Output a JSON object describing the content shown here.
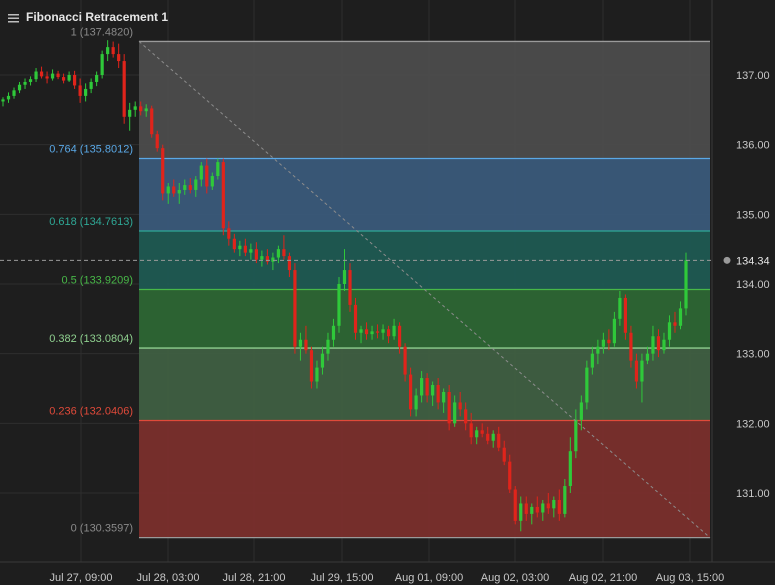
{
  "title": "Fibonacci Retracement 1",
  "colors": {
    "background": "#1e1e1e",
    "grid": "#2e2e2e",
    "axis_text": "#c8c8c8",
    "up": "#2fc93a",
    "down": "#e0241b",
    "fib_1": "#4c4c4c",
    "fib_0764": "#3a5a7a",
    "fib_0618": "#1f5a52",
    "fib_05": "#2d6634",
    "fib_0382": "#3f5f42",
    "fib_0236": "#7a2f2c",
    "label_1": "#8a8a8a",
    "label_0764": "#5aa8e6",
    "label_0618": "#2fa896",
    "label_05": "#48b848",
    "label_0382": "#8fd08f",
    "label_0236": "#e04a3a",
    "label_0": "#8a8a8a"
  },
  "chart_data": {
    "type": "candlestick",
    "ylim": [
      130.0,
      137.9
    ],
    "y_ticks": [
      "137.00",
      "136.00",
      "135.00",
      "134.00",
      "133.00",
      "132.00",
      "131.00"
    ],
    "x_ticks": [
      "Jul 27, 09:00",
      "Jul 28, 03:00",
      "Jul 28, 21:00",
      "Jul 29, 15:00",
      "Aug 01, 09:00",
      "Aug 02, 03:00",
      "Aug 02, 21:00",
      "Aug 03, 15:00"
    ],
    "current_price": "134.34",
    "fib_levels": [
      {
        "ratio": "1",
        "price": 137.482,
        "label": "1 (137.4820)",
        "fill": "fib_1",
        "text_color": "label_1"
      },
      {
        "ratio": "0.764",
        "price": 135.8012,
        "label": "0.764 (135.8012)",
        "fill": "fib_0764",
        "text_color": "label_0764"
      },
      {
        "ratio": "0.618",
        "price": 134.7613,
        "label": "0.618 (134.7613)",
        "fill": "fib_0618",
        "text_color": "label_0618"
      },
      {
        "ratio": "0.5",
        "price": 133.9209,
        "label": "0.5 (133.9209)",
        "fill": "fib_05",
        "text_color": "label_05"
      },
      {
        "ratio": "0.382",
        "price": 133.0804,
        "label": "0.382 (133.0804)",
        "fill": "fib_0382",
        "text_color": "label_0382"
      },
      {
        "ratio": "0.236",
        "price": 132.0406,
        "label": "0.236 (132.0406)",
        "fill": "fib_0236",
        "text_color": "label_0236"
      },
      {
        "ratio": "0",
        "price": 130.3597,
        "label": "0 (130.3597)",
        "fill": "fib_0",
        "text_color": "label_0"
      }
    ],
    "trend_line": {
      "from_price": 137.482,
      "to_price": 130.3597
    },
    "candles": [
      [
        136.62,
        136.68,
        136.55,
        136.65
      ],
      [
        136.65,
        136.75,
        136.6,
        136.7
      ],
      [
        136.7,
        136.82,
        136.66,
        136.78
      ],
      [
        136.78,
        136.9,
        136.74,
        136.86
      ],
      [
        136.86,
        136.95,
        136.8,
        136.9
      ],
      [
        136.9,
        136.98,
        136.85,
        136.94
      ],
      [
        136.94,
        137.1,
        136.9,
        137.05
      ],
      [
        137.05,
        137.12,
        136.95,
        136.98
      ],
      [
        136.98,
        137.05,
        136.88,
        136.95
      ],
      [
        136.95,
        137.08,
        136.92,
        137.02
      ],
      [
        137.02,
        137.06,
        136.94,
        136.97
      ],
      [
        136.97,
        137.02,
        136.88,
        136.92
      ],
      [
        136.92,
        137.05,
        136.9,
        137.0
      ],
      [
        137.0,
        137.06,
        136.8,
        136.85
      ],
      [
        136.85,
        136.95,
        136.6,
        136.7
      ],
      [
        136.7,
        136.88,
        136.62,
        136.8
      ],
      [
        136.8,
        136.95,
        136.74,
        136.9
      ],
      [
        136.9,
        137.05,
        136.84,
        137.0
      ],
      [
        137.0,
        137.35,
        136.95,
        137.3
      ],
      [
        137.3,
        137.5,
        137.2,
        137.4
      ],
      [
        137.4,
        137.48,
        137.25,
        137.3
      ],
      [
        137.3,
        137.45,
        137.1,
        137.2
      ],
      [
        137.2,
        137.3,
        136.3,
        136.4
      ],
      [
        136.4,
        136.6,
        136.2,
        136.5
      ],
      [
        136.5,
        136.62,
        136.4,
        136.55
      ],
      [
        136.55,
        136.62,
        136.42,
        136.48
      ],
      [
        136.48,
        136.58,
        136.4,
        136.52
      ],
      [
        136.52,
        136.56,
        136.1,
        136.15
      ],
      [
        136.15,
        136.2,
        135.9,
        135.95
      ],
      [
        135.95,
        136.0,
        135.2,
        135.3
      ],
      [
        135.3,
        135.45,
        135.15,
        135.4
      ],
      [
        135.4,
        135.5,
        135.25,
        135.3
      ],
      [
        135.3,
        135.45,
        135.15,
        135.35
      ],
      [
        135.35,
        135.5,
        135.28,
        135.42
      ],
      [
        135.42,
        135.52,
        135.3,
        135.35
      ],
      [
        135.35,
        135.55,
        135.25,
        135.5
      ],
      [
        135.5,
        135.75,
        135.4,
        135.7
      ],
      [
        135.7,
        135.8,
        135.3,
        135.4
      ],
      [
        135.4,
        135.6,
        135.35,
        135.55
      ],
      [
        135.55,
        135.8,
        135.5,
        135.75
      ],
      [
        135.75,
        135.8,
        134.7,
        134.8
      ],
      [
        134.8,
        134.9,
        134.55,
        134.65
      ],
      [
        134.65,
        134.72,
        134.45,
        134.5
      ],
      [
        134.5,
        134.62,
        134.4,
        134.55
      ],
      [
        134.55,
        134.65,
        134.4,
        134.45
      ],
      [
        134.45,
        134.58,
        134.35,
        134.5
      ],
      [
        134.5,
        134.6,
        134.3,
        134.35
      ],
      [
        134.35,
        134.48,
        134.25,
        134.4
      ],
      [
        134.4,
        134.5,
        134.28,
        134.32
      ],
      [
        134.32,
        134.45,
        134.2,
        134.38
      ],
      [
        134.38,
        134.55,
        134.3,
        134.5
      ],
      [
        134.5,
        134.7,
        134.35,
        134.4
      ],
      [
        134.4,
        134.45,
        134.1,
        134.2
      ],
      [
        134.2,
        134.3,
        133.0,
        133.1
      ],
      [
        133.1,
        133.3,
        132.9,
        133.2
      ],
      [
        133.2,
        133.4,
        133.0,
        133.05
      ],
      [
        133.05,
        133.1,
        132.5,
        132.6
      ],
      [
        132.6,
        132.9,
        132.5,
        132.8
      ],
      [
        132.8,
        133.1,
        132.7,
        133.0
      ],
      [
        133.0,
        133.3,
        132.9,
        133.2
      ],
      [
        133.2,
        133.5,
        133.1,
        133.4
      ],
      [
        133.4,
        134.1,
        133.3,
        134.0
      ],
      [
        134.0,
        134.5,
        133.9,
        134.2
      ],
      [
        134.2,
        134.3,
        133.6,
        133.7
      ],
      [
        133.7,
        133.8,
        133.2,
        133.3
      ],
      [
        133.3,
        133.4,
        133.15,
        133.35
      ],
      [
        133.35,
        133.45,
        133.2,
        133.28
      ],
      [
        133.28,
        133.4,
        133.2,
        133.32
      ],
      [
        133.32,
        133.42,
        133.22,
        133.3
      ],
      [
        133.3,
        133.42,
        133.2,
        133.35
      ],
      [
        133.35,
        133.4,
        133.15,
        133.25
      ],
      [
        133.25,
        133.5,
        133.2,
        133.4
      ],
      [
        133.4,
        133.45,
        133.0,
        133.1
      ],
      [
        133.1,
        133.15,
        132.6,
        132.7
      ],
      [
        132.7,
        132.8,
        132.1,
        132.2
      ],
      [
        132.2,
        132.5,
        132.1,
        132.4
      ],
      [
        132.4,
        132.75,
        132.3,
        132.65
      ],
      [
        132.65,
        132.72,
        132.3,
        132.4
      ],
      [
        132.4,
        132.6,
        132.25,
        132.55
      ],
      [
        132.55,
        132.65,
        132.2,
        132.3
      ],
      [
        132.3,
        132.5,
        132.15,
        132.45
      ],
      [
        132.45,
        132.55,
        131.9,
        132.0
      ],
      [
        132.0,
        132.4,
        131.95,
        132.3
      ],
      [
        132.3,
        132.45,
        132.1,
        132.2
      ],
      [
        132.2,
        132.3,
        131.9,
        132.0
      ],
      [
        132.0,
        132.15,
        131.7,
        131.8
      ],
      [
        131.8,
        131.95,
        131.7,
        131.9
      ],
      [
        131.9,
        132.0,
        131.8,
        131.85
      ],
      [
        131.85,
        131.95,
        131.7,
        131.75
      ],
      [
        131.75,
        131.9,
        131.65,
        131.85
      ],
      [
        131.85,
        131.95,
        131.6,
        131.65
      ],
      [
        131.65,
        131.75,
        131.4,
        131.45
      ],
      [
        131.45,
        131.55,
        131.0,
        131.05
      ],
      [
        131.05,
        131.1,
        130.55,
        130.6
      ],
      [
        130.6,
        130.95,
        130.45,
        130.85
      ],
      [
        130.85,
        130.95,
        130.6,
        130.7
      ],
      [
        130.7,
        130.85,
        130.55,
        130.8
      ],
      [
        130.8,
        130.95,
        130.65,
        130.72
      ],
      [
        130.72,
        130.9,
        130.6,
        130.85
      ],
      [
        130.85,
        131.0,
        130.7,
        130.78
      ],
      [
        130.78,
        130.95,
        130.65,
        130.9
      ],
      [
        130.9,
        131.05,
        130.6,
        130.7
      ],
      [
        130.7,
        131.2,
        130.65,
        131.1
      ],
      [
        131.1,
        131.8,
        131.0,
        131.6
      ],
      [
        131.6,
        132.2,
        131.5,
        132.05
      ],
      [
        132.05,
        132.4,
        131.9,
        132.3
      ],
      [
        132.3,
        132.9,
        132.2,
        132.8
      ],
      [
        132.8,
        133.1,
        132.7,
        133.0
      ],
      [
        133.0,
        133.2,
        132.85,
        133.1
      ],
      [
        133.1,
        133.3,
        133.0,
        133.2
      ],
      [
        133.2,
        133.35,
        133.05,
        133.15
      ],
      [
        133.15,
        133.6,
        133.1,
        133.5
      ],
      [
        133.5,
        133.9,
        133.4,
        133.8
      ],
      [
        133.8,
        133.85,
        133.2,
        133.3
      ],
      [
        133.3,
        133.4,
        132.8,
        132.9
      ],
      [
        132.9,
        133.0,
        132.5,
        132.6
      ],
      [
        132.6,
        133.0,
        132.3,
        132.9
      ],
      [
        132.9,
        133.1,
        132.85,
        133.0
      ],
      [
        133.0,
        133.4,
        132.9,
        133.25
      ],
      [
        133.25,
        133.35,
        132.95,
        133.05
      ],
      [
        133.05,
        133.3,
        133.0,
        133.2
      ],
      [
        133.2,
        133.55,
        133.1,
        133.45
      ],
      [
        133.45,
        133.6,
        133.3,
        133.4
      ],
      [
        133.4,
        133.75,
        133.35,
        133.65
      ],
      [
        133.65,
        134.45,
        133.55,
        134.34
      ]
    ]
  }
}
